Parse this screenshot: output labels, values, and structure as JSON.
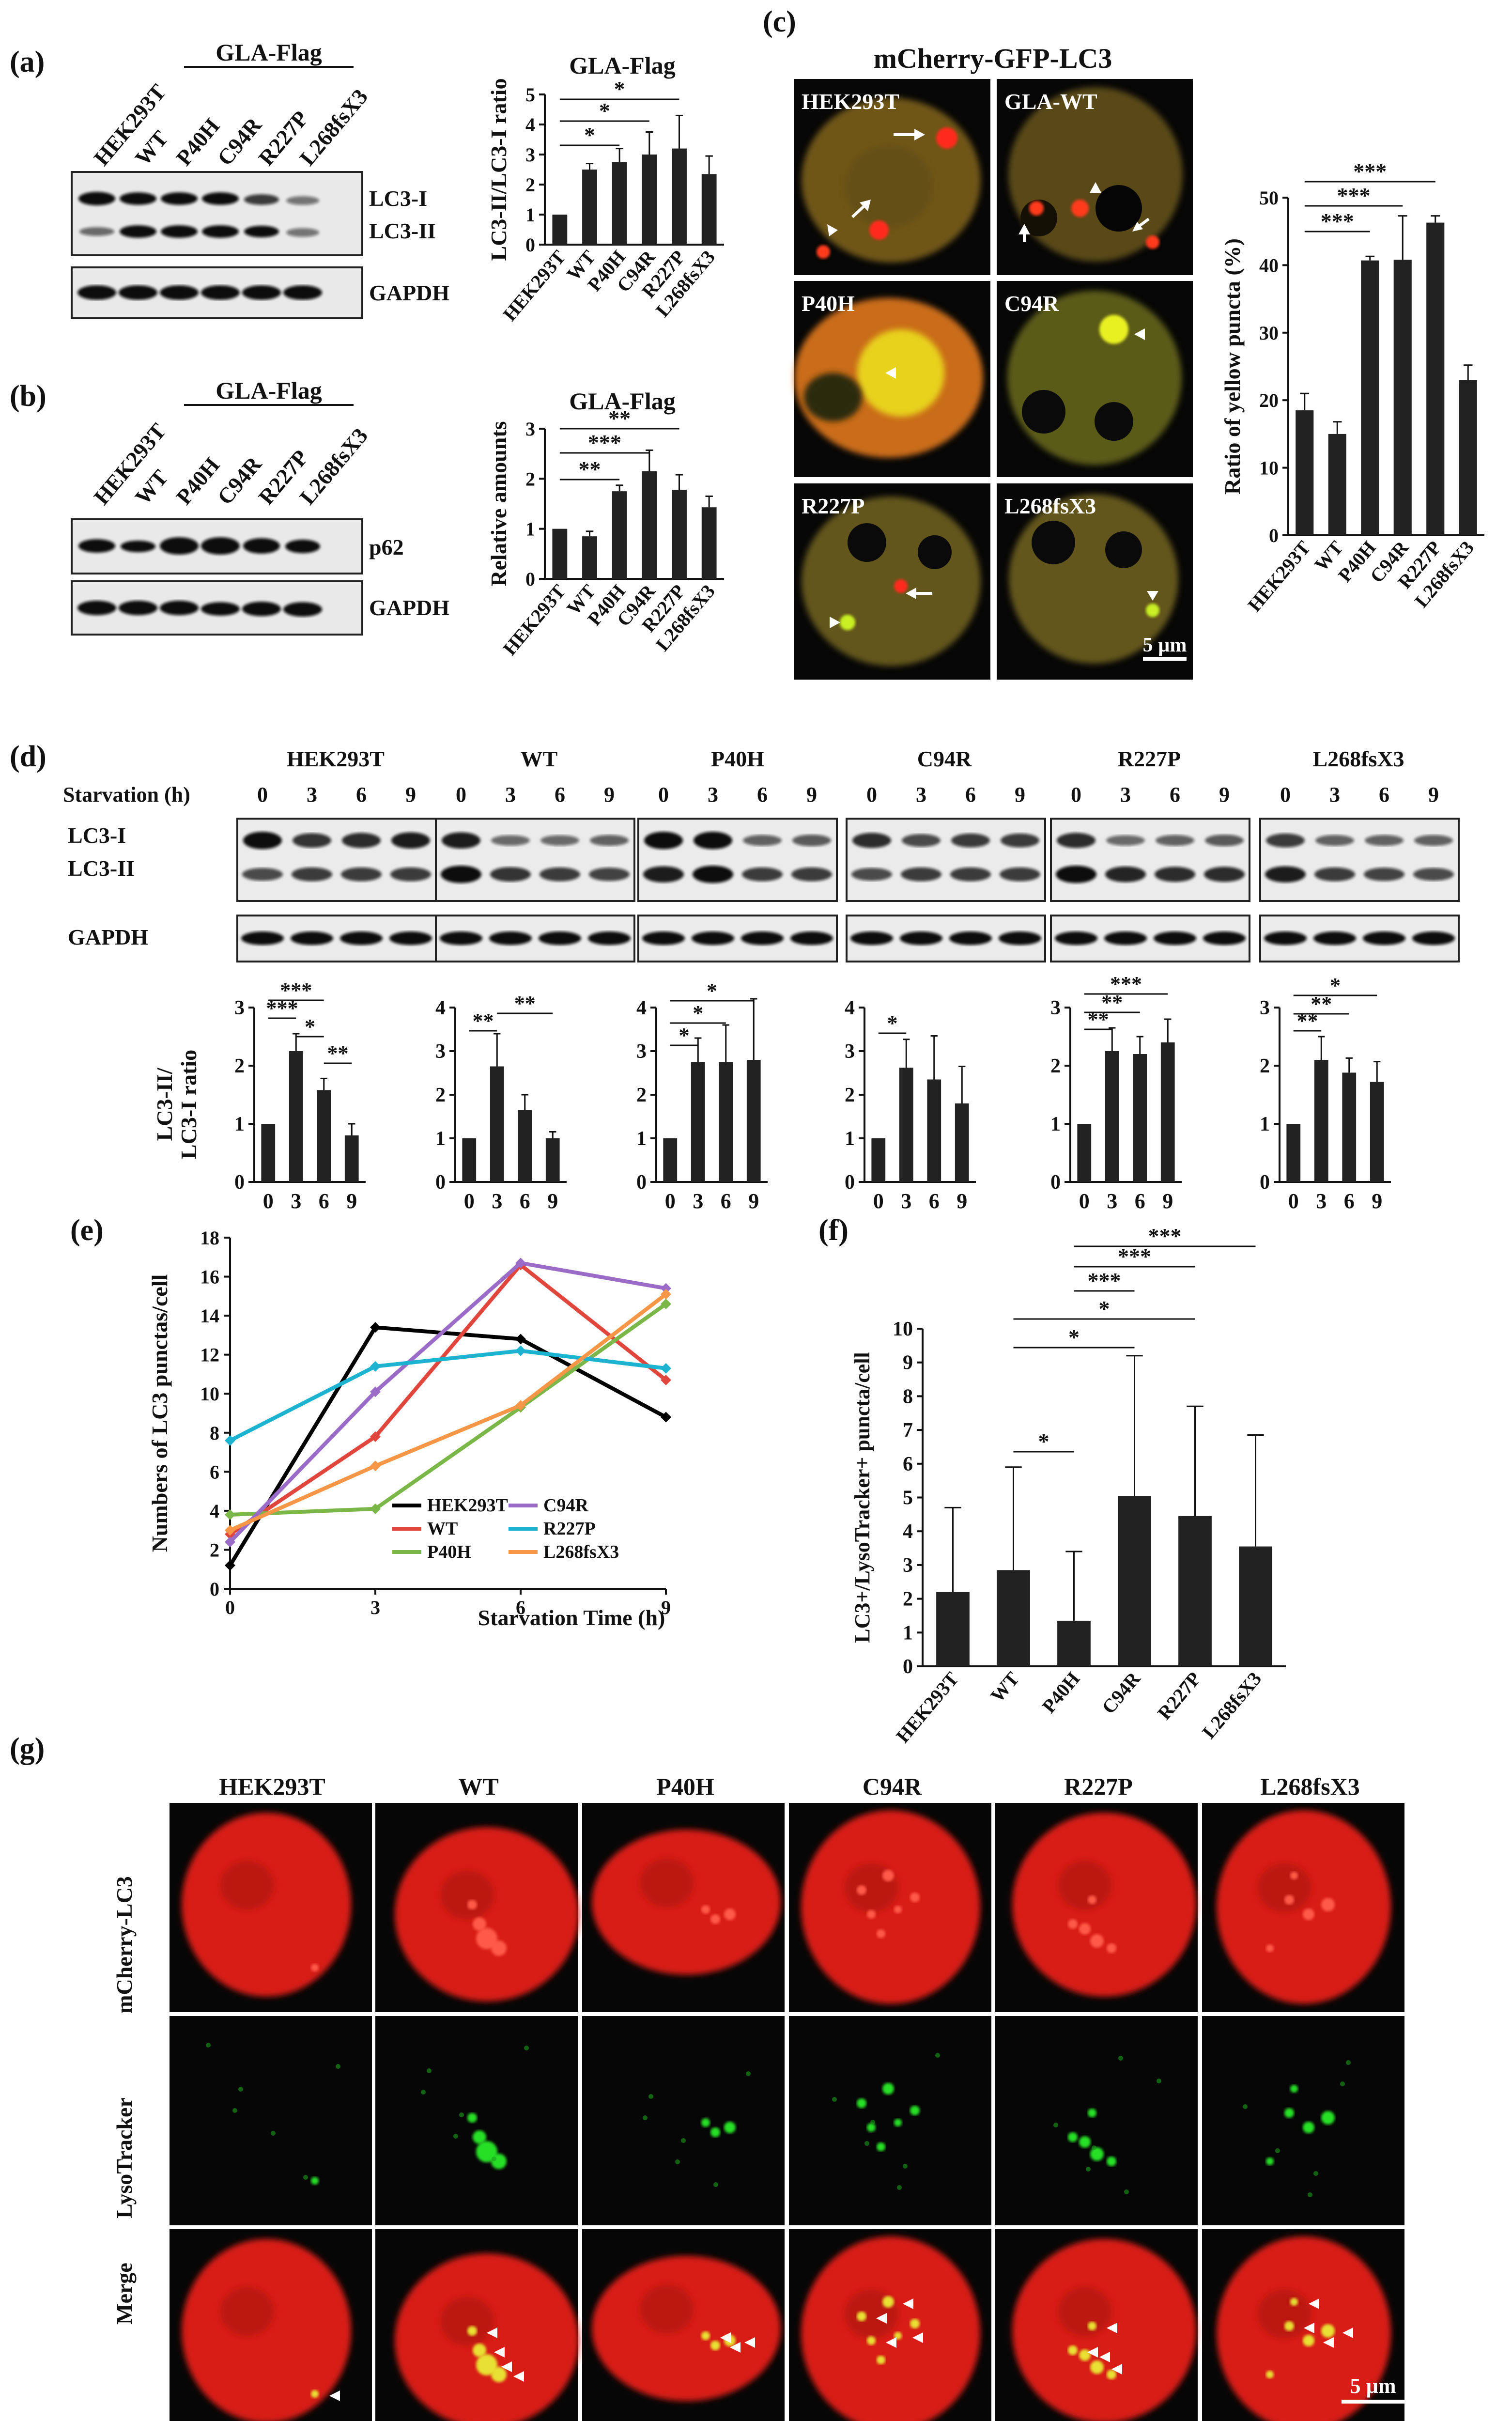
{
  "panels": {
    "a": {
      "label": "(a)",
      "header": "GLA-Flag",
      "lanes": [
        "HEK293T",
        "WT",
        "P40H",
        "C94R",
        "R227P",
        "L268fsX3"
      ],
      "bands": [
        "LC3-I",
        "LC3-II",
        "GAPDH"
      ]
    },
    "b": {
      "label": "(b)",
      "header": "GLA-Flag",
      "lanes": [
        "HEK293T",
        "WT",
        "P40H",
        "C94R",
        "R227P",
        "L268fsX3"
      ],
      "bands": [
        "p62",
        "GAPDH"
      ]
    },
    "c": {
      "label": "(c)",
      "title": "mCherry-GFP-LC3",
      "cells": [
        "HEK293T",
        "GLA-WT",
        "P40H",
        "C94R",
        "R227P",
        "L268fsX3"
      ],
      "scale": "5 µm"
    },
    "d": {
      "label": "(d)",
      "starvation_label": "Starvation (h)",
      "groups": [
        "HEK293T",
        "WT",
        "P40H",
        "C94R",
        "R227P",
        "L268fsX3"
      ],
      "timepoints": [
        "0",
        "3",
        "6",
        "9"
      ],
      "bands": [
        "LC3-I",
        "LC3-II",
        "GAPDH"
      ],
      "ylabel_line1": "LC3-II/",
      "ylabel_line2": "LC3-I ratio"
    },
    "e": {
      "label": "(e)"
    },
    "f": {
      "label": "(f)"
    },
    "g": {
      "label": "(g)",
      "columns": [
        "HEK293T",
        "WT",
        "P40H",
        "C94R",
        "R227P",
        "L268fsX3"
      ],
      "rows": [
        "mCherry-LC3",
        "LysoTracker",
        "Merge"
      ],
      "scale": "5 µm"
    }
  },
  "chart_data": [
    {
      "id": "a-chart",
      "type": "bar",
      "title": "GLA-Flag",
      "categories": [
        "HEK293T",
        "WT",
        "P40H",
        "C94R",
        "R227P",
        "L268fsX3"
      ],
      "values": [
        1.0,
        2.5,
        2.75,
        3.0,
        3.2,
        2.35
      ],
      "errors": [
        0,
        0.2,
        0.45,
        0.75,
        1.1,
        0.6
      ],
      "ylabel": "LC3-II/LC3-I ratio",
      "ylim": [
        0,
        5
      ],
      "yticks": [
        "0",
        "1",
        "2",
        "3",
        "4",
        "5"
      ],
      "sig": [
        "*",
        "*",
        "*"
      ]
    },
    {
      "id": "b-chart",
      "type": "bar",
      "title": "GLA-Flag",
      "categories": [
        "HEK293T",
        "WT",
        "P40H",
        "C94R",
        "R227P",
        "L268fsX3"
      ],
      "values": [
        1.0,
        0.85,
        1.75,
        2.15,
        1.78,
        1.43
      ],
      "errors": [
        0,
        0.1,
        0.12,
        0.42,
        0.3,
        0.22
      ],
      "ylabel": "Relative amounts",
      "ylim": [
        0,
        3
      ],
      "yticks": [
        "0",
        "1",
        "2",
        "3"
      ],
      "sig": [
        "**",
        "***",
        "**"
      ]
    },
    {
      "id": "c-chart",
      "type": "bar",
      "categories": [
        "HEK293T",
        "WT",
        "P40H",
        "C94R",
        "R227P",
        "L268fsX3"
      ],
      "values": [
        18.5,
        15,
        40.7,
        40.8,
        46.3,
        23
      ],
      "errors": [
        2.5,
        1.8,
        0.6,
        6.5,
        1.0,
        2.2
      ],
      "ylabel": "Ratio of yellow puncta (%)",
      "ylim": [
        0,
        50
      ],
      "yticks": [
        "0",
        "10",
        "20",
        "30",
        "40",
        "50"
      ],
      "sig": [
        "***",
        "***",
        "***"
      ]
    },
    {
      "id": "d1",
      "type": "bar",
      "categories": [
        "0",
        "3",
        "6",
        "9"
      ],
      "values": [
        1.0,
        2.25,
        1.58,
        0.8
      ],
      "errors": [
        0,
        0.3,
        0.2,
        0.2
      ],
      "ylim": [
        0,
        3
      ],
      "yticks": [
        "0",
        "1",
        "2",
        "3"
      ],
      "sig": [
        "***",
        "***",
        "*",
        "**"
      ]
    },
    {
      "id": "d2",
      "type": "bar",
      "categories": [
        "0",
        "3",
        "6",
        "9"
      ],
      "values": [
        1.0,
        2.65,
        1.65,
        1.0
      ],
      "errors": [
        0,
        0.75,
        0.35,
        0.15
      ],
      "ylim": [
        0,
        4
      ],
      "yticks": [
        "0",
        "1",
        "2",
        "3",
        "4"
      ],
      "sig": [
        "**",
        "**"
      ]
    },
    {
      "id": "d3",
      "type": "bar",
      "categories": [
        "0",
        "3",
        "6",
        "9"
      ],
      "values": [
        1.0,
        2.75,
        2.75,
        2.8
      ],
      "errors": [
        0,
        0.55,
        0.85,
        1.4
      ],
      "ylim": [
        0,
        4
      ],
      "yticks": [
        "0",
        "1",
        "2",
        "3",
        "4"
      ],
      "sig": [
        "*",
        "*",
        "*"
      ]
    },
    {
      "id": "d4",
      "type": "bar",
      "categories": [
        "0",
        "3",
        "6",
        "9"
      ],
      "values": [
        1.0,
        2.62,
        2.35,
        1.8
      ],
      "errors": [
        0,
        0.65,
        1.0,
        0.85
      ],
      "ylim": [
        0,
        4
      ],
      "yticks": [
        "0",
        "1",
        "2",
        "3",
        "4"
      ],
      "sig": [
        "*"
      ]
    },
    {
      "id": "d5",
      "type": "bar",
      "categories": [
        "0",
        "3",
        "6",
        "9"
      ],
      "values": [
        1.0,
        2.25,
        2.2,
        2.4
      ],
      "errors": [
        0,
        0.4,
        0.3,
        0.4
      ],
      "ylim": [
        0,
        3
      ],
      "yticks": [
        "0",
        "1",
        "2",
        "3"
      ],
      "sig": [
        "**",
        "**",
        "***"
      ]
    },
    {
      "id": "d6",
      "type": "bar",
      "categories": [
        "0",
        "3",
        "6",
        "9"
      ],
      "values": [
        1.0,
        2.1,
        1.88,
        1.72
      ],
      "errors": [
        0,
        0.4,
        0.25,
        0.35
      ],
      "ylim": [
        0,
        3
      ],
      "yticks": [
        "0",
        "1",
        "2",
        "3"
      ],
      "sig": [
        "**",
        "**",
        "*"
      ]
    },
    {
      "id": "e-chart",
      "type": "line",
      "xlabel": "Starvation Time (h)",
      "ylabel": "Numbers of LC3 punctas/cell",
      "x": [
        0,
        3,
        6,
        9
      ],
      "xlim": [
        0,
        9
      ],
      "ylim": [
        0,
        18
      ],
      "xticks": [
        "0",
        "3",
        "6",
        "9"
      ],
      "yticks": [
        "0",
        "2",
        "4",
        "6",
        "8",
        "10",
        "12",
        "14",
        "16",
        "18"
      ],
      "series": [
        {
          "name": "HEK293T",
          "color": "#000000",
          "values": [
            1.2,
            13.4,
            12.8,
            8.8
          ]
        },
        {
          "name": "WT",
          "color": "#e0463c",
          "values": [
            2.8,
            7.8,
            16.6,
            10.7
          ]
        },
        {
          "name": "P40H",
          "color": "#7ab648",
          "values": [
            3.8,
            4.1,
            9.3,
            14.6
          ]
        },
        {
          "name": "C94R",
          "color": "#9b6bc8",
          "values": [
            2.4,
            10.1,
            16.7,
            15.4
          ]
        },
        {
          "name": "R227P",
          "color": "#1bb3cf",
          "values": [
            7.6,
            11.4,
            12.2,
            11.3
          ]
        },
        {
          "name": "L268fsX3",
          "color": "#f79646",
          "values": [
            3.0,
            6.3,
            9.4,
            15.1
          ]
        }
      ]
    },
    {
      "id": "f-chart",
      "type": "bar",
      "categories": [
        "HEK293T",
        "WT",
        "P40H",
        "C94R",
        "R227P",
        "L268fsX3"
      ],
      "values": [
        2.2,
        2.85,
        1.35,
        5.05,
        4.45,
        3.55
      ],
      "errors": [
        2.5,
        3.05,
        2.05,
        4.15,
        3.25,
        3.3
      ],
      "ylabel": "LC3+/LysoTracker+ puncta/cell",
      "ylim": [
        0,
        10
      ],
      "yticks": [
        "0",
        "1",
        "2",
        "3",
        "4",
        "5",
        "6",
        "7",
        "8",
        "9",
        "10"
      ],
      "sig": [
        "*",
        "*",
        "*",
        "***",
        "***",
        "***"
      ]
    }
  ]
}
